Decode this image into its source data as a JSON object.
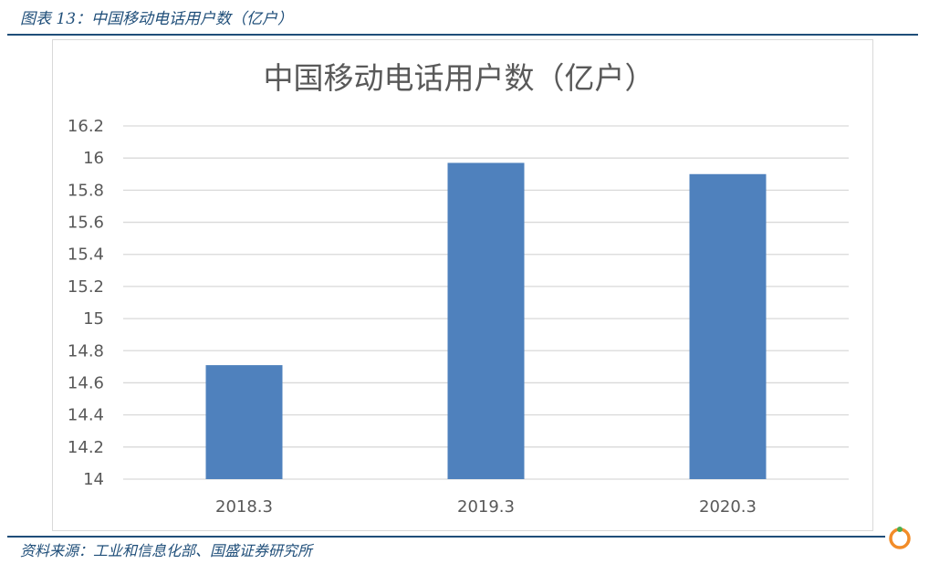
{
  "figure": {
    "caption": "图表 13：中国移动电话用户数（亿户）",
    "source": "资料来源：工业和信息化部、国盛证券研究所"
  },
  "chart_data": {
    "type": "bar",
    "title": "中国移动电话用户数（亿户）",
    "categories": [
      "2018.3",
      "2019.3",
      "2020.3"
    ],
    "values": [
      14.71,
      15.97,
      15.9
    ],
    "ylim": [
      14,
      16.2
    ],
    "yticks": [
      "14",
      "14.2",
      "14.4",
      "14.6",
      "14.8",
      "15",
      "15.2",
      "15.4",
      "15.6",
      "15.8",
      "16",
      "16.2"
    ],
    "grid": true,
    "legend": "none",
    "bar_color": "#4f81bd"
  },
  "colors": {
    "accent": "#1f4e79",
    "gridline": "#d9d9d9",
    "logo_orange": "#f28c28",
    "logo_green": "#4caf50"
  }
}
